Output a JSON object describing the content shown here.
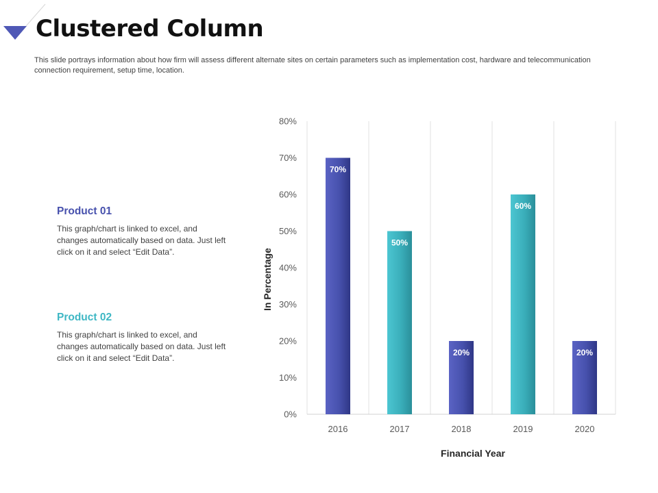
{
  "slide": {
    "title": "Clustered Column",
    "subtitle": "This slide portrays information about how firm will assess different alternate sites on certain parameters such as implementation cost, hardware and telecommunication connection requirement, setup time, location."
  },
  "products": [
    {
      "title": "Product 01",
      "description": "This graph/chart is linked to excel, and changes automatically based on data. Just left click on it and select “Edit Data”."
    },
    {
      "title": "Product 02",
      "description": "This graph/chart is linked to excel, and changes automatically based on data. Just left click on it and select “Edit Data”."
    }
  ],
  "colors": {
    "accent_blue": "#4751ad",
    "accent_teal": "#3eb7c4",
    "title_marker": "#4f58b6"
  },
  "chart_data": {
    "type": "bar",
    "categories": [
      "2016",
      "2017",
      "2018",
      "2019",
      "2020"
    ],
    "values": [
      70,
      50,
      20,
      60,
      20
    ],
    "data_labels": [
      "70%",
      "50%",
      "20%",
      "60%",
      "20%"
    ],
    "bar_series_index": [
      0,
      1,
      0,
      1,
      0
    ],
    "series_colors": [
      "#4751ad",
      "#3eb7c4"
    ],
    "xlabel": "Financial Year",
    "ylabel": "In Percentage",
    "ylim": [
      0,
      80
    ],
    "yticks": [
      "0%",
      "10%",
      "20%",
      "30%",
      "40%",
      "50%",
      "60%",
      "70%",
      "80%"
    ],
    "grid": "vertical"
  }
}
